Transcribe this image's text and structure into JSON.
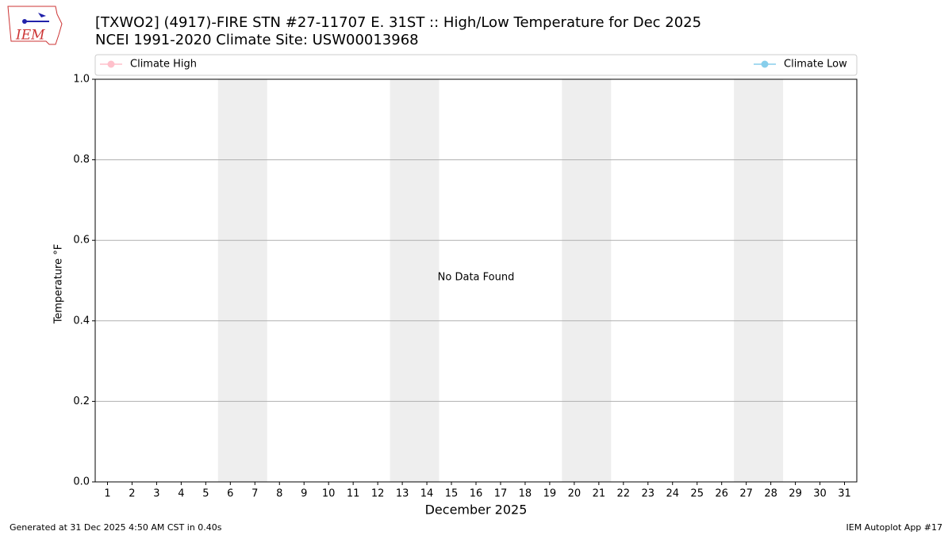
{
  "chart_data": {
    "type": "line",
    "title": "[TXWO2] (4917)-FIRE STN #27-11707 E. 31ST :: High/Low Temperature for Dec 2025",
    "subtitle": "NCEI 1991-2020 Climate Site: USW00013968",
    "logo_text": "IEM",
    "x_label": "December 2025",
    "y_label": "Temperature °F",
    "annotation": "No Data Found",
    "footer_left": "Generated at 31 Dec 2025 4:50 AM CST in 0.40s",
    "footer_right": "IEM Autoplot App #17",
    "series": [
      {
        "name": "Climate High",
        "color": "#ffc0cb"
      },
      {
        "name": "Climate Low",
        "color": "#87ceeb"
      }
    ],
    "xlim": [
      0.5,
      31.5
    ],
    "xticks": [
      1,
      2,
      3,
      4,
      5,
      6,
      7,
      8,
      9,
      10,
      11,
      12,
      13,
      14,
      15,
      16,
      17,
      18,
      19,
      20,
      21,
      22,
      23,
      24,
      25,
      26,
      27,
      28,
      29,
      30,
      31
    ],
    "ylim": [
      0,
      1
    ],
    "yticks": [
      {
        "value": 0,
        "label": "0.0"
      },
      {
        "value": 0.2,
        "label": "0.2"
      },
      {
        "value": 0.4,
        "label": "0.4"
      },
      {
        "value": 0.6,
        "label": "0.6"
      },
      {
        "value": 0.8,
        "label": "0.8"
      },
      {
        "value": 1,
        "label": "1.0"
      }
    ],
    "weekend_spans": [
      [
        5.5,
        7.5
      ],
      [
        12.5,
        14.5
      ],
      [
        19.5,
        21.5
      ],
      [
        26.5,
        28.5
      ]
    ],
    "span_color": "#eeeeee",
    "grid": true
  }
}
